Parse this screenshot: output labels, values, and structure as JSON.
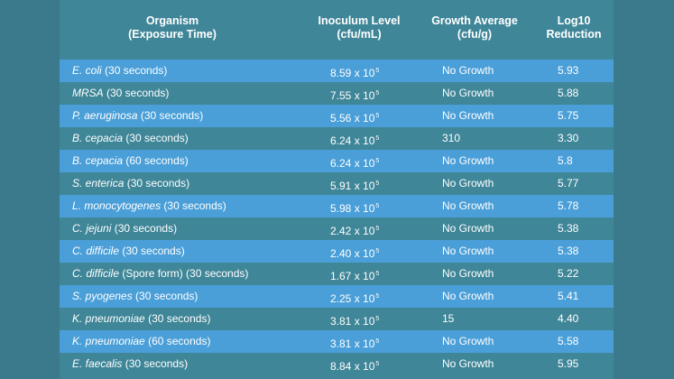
{
  "header": {
    "organism_line1": "Organism",
    "organism_line2": "(Exposure Time)",
    "inoculum_line1": "Inoculum Level",
    "inoculum_line2": "(cfu/mL)",
    "growth_line1": "Growth Average",
    "growth_line2": "(cfu/g)",
    "log_line1": "Log10",
    "log_line2": "Reduction"
  },
  "rows": [
    {
      "organism": "E. coli",
      "suffix": " (30 seconds)",
      "inoculum": "8.59 x 10",
      "exp": "5",
      "growth": "No Growth",
      "log": "5.93"
    },
    {
      "organism": "MRSA",
      "suffix": " (30 seconds)",
      "inoculum": "7.55 x 10",
      "exp": "5",
      "growth": "No Growth",
      "log": "5.88"
    },
    {
      "organism": "P. aeruginosa",
      "suffix": " (30 seconds)",
      "inoculum": "5.56 x 10",
      "exp": "5",
      "growth": "No Growth",
      "log": "5.75"
    },
    {
      "organism": "B. cepacia",
      "suffix": " (30 seconds)",
      "inoculum": "6.24 x 10",
      "exp": "5",
      "growth": "310",
      "log": "3.30"
    },
    {
      "organism": "B. cepacia",
      "suffix": " (60 seconds)",
      "inoculum": "6.24 x 10",
      "exp": "5",
      "growth": "No Growth",
      "log": "5.8"
    },
    {
      "organism": "S. enterica",
      "suffix": " (30 seconds)",
      "inoculum": "5.91 x 10",
      "exp": "5",
      "growth": "No Growth",
      "log": "5.77"
    },
    {
      "organism": "L. monocytogenes",
      "suffix": " (30 seconds)",
      "inoculum": "5.98 x 10",
      "exp": "5",
      "growth": "No Growth",
      "log": "5.78"
    },
    {
      "organism": "C. jejuni",
      "suffix": " (30 seconds)",
      "inoculum": "2.42 x 10",
      "exp": "5",
      "growth": "No Growth",
      "log": "5.38"
    },
    {
      "organism": "C. difficile",
      "suffix": " (30 seconds)",
      "inoculum": "2.40 x 10",
      "exp": "5",
      "growth": "No Growth",
      "log": "5.38"
    },
    {
      "organism": "C. difficile",
      "suffix": " (Spore form) (30 seconds)",
      "inoculum": "1.67 x 10",
      "exp": "5",
      "growth": "No Growth",
      "log": "5.22"
    },
    {
      "organism": "S. pyogenes",
      "suffix": " (30 seconds)",
      "inoculum": "2.25 x 10",
      "exp": "5",
      "growth": "No Growth",
      "log": "5.41"
    },
    {
      "organism": "K. pneumoniae",
      "suffix": " (30 seconds)",
      "inoculum": "3.81 x 10",
      "exp": "5",
      "growth": "15",
      "log": "4.40"
    },
    {
      "organism": "K. pneumoniae",
      "suffix": " (60 seconds)",
      "inoculum": "3.81 x 10",
      "exp": "5",
      "growth": "No Growth",
      "log": "5.58"
    },
    {
      "organism": "E. faecalis",
      "suffix": " (30 seconds)",
      "inoculum": "8.84 x 10",
      "exp": "5",
      "growth": "No Growth",
      "log": "5.95"
    }
  ],
  "colors": {
    "background": "#3a7a8c",
    "panel": "#3f8698",
    "row_highlight": "#4a9fd8",
    "text": "#ffffff"
  }
}
